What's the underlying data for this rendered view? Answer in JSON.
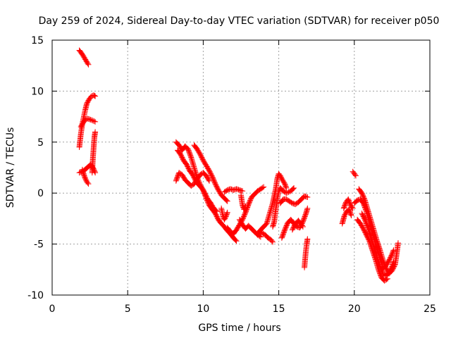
{
  "chart_data": {
    "type": "scatter",
    "title": "Day 259 of 2024, Sidereal Day-to-day VTEC variation (SDTVAR) for receiver p050",
    "xlabel": "GPS time / hours",
    "ylabel": "SDTVAR / TECUs",
    "xlim": [
      0,
      25
    ],
    "ylim": [
      -10,
      15
    ],
    "xticks": [
      0,
      5,
      10,
      15,
      20,
      25
    ],
    "yticks": [
      -10,
      -5,
      0,
      5,
      10,
      15
    ],
    "grid": true,
    "marker": "plus",
    "color": "#ff0000",
    "tracks": [
      [
        [
          1.8,
          14.0
        ],
        [
          2.0,
          13.6
        ],
        [
          2.2,
          13.1
        ],
        [
          2.4,
          12.6
        ]
      ],
      [
        [
          1.8,
          4.5
        ],
        [
          1.9,
          5.8
        ],
        [
          2.0,
          6.8
        ],
        [
          2.1,
          7.5
        ],
        [
          2.2,
          8.2
        ],
        [
          2.3,
          8.8
        ],
        [
          2.45,
          9.2
        ],
        [
          2.6,
          9.5
        ],
        [
          2.75,
          9.6
        ],
        [
          2.85,
          9.5
        ]
      ],
      [
        [
          1.9,
          6.5
        ],
        [
          2.05,
          6.9
        ],
        [
          2.2,
          7.2
        ],
        [
          2.35,
          7.3
        ],
        [
          2.55,
          7.2
        ],
        [
          2.7,
          7.1
        ],
        [
          2.85,
          7.0
        ]
      ],
      [
        [
          1.8,
          2.0
        ],
        [
          1.95,
          2.1
        ],
        [
          2.1,
          2.2
        ],
        [
          2.25,
          2.4
        ],
        [
          2.4,
          2.6
        ],
        [
          2.55,
          2.8
        ],
        [
          2.7,
          2.5
        ],
        [
          2.85,
          2.0
        ]
      ],
      [
        [
          2.0,
          2.3
        ],
        [
          2.1,
          1.8
        ],
        [
          2.2,
          1.4
        ],
        [
          2.3,
          1.1
        ],
        [
          2.4,
          0.9
        ]
      ],
      [
        [
          2.65,
          2.0
        ],
        [
          2.7,
          3.5
        ],
        [
          2.75,
          4.5
        ],
        [
          2.8,
          5.5
        ],
        [
          2.85,
          6.0
        ]
      ],
      [
        [
          8.2,
          5.0
        ],
        [
          8.4,
          4.7
        ],
        [
          8.6,
          4.2
        ],
        [
          8.8,
          4.6
        ],
        [
          9.0,
          4.3
        ],
        [
          9.2,
          3.5
        ],
        [
          9.4,
          2.5
        ],
        [
          9.6,
          1.5
        ],
        [
          9.8,
          0.8
        ],
        [
          10.0,
          0.3
        ],
        [
          10.2,
          -0.5
        ],
        [
          10.4,
          -1.2
        ],
        [
          10.6,
          -1.6
        ],
        [
          10.8,
          -2.0
        ],
        [
          11.0,
          -2.6
        ],
        [
          11.2,
          -3.0
        ],
        [
          11.4,
          -3.3
        ],
        [
          11.6,
          -3.7
        ],
        [
          11.8,
          -4.0
        ],
        [
          12.0,
          -4.4
        ],
        [
          12.2,
          -4.7
        ]
      ],
      [
        [
          8.3,
          4.2
        ],
        [
          8.5,
          3.8
        ],
        [
          8.7,
          3.2
        ],
        [
          8.9,
          2.8
        ],
        [
          9.1,
          2.2
        ],
        [
          9.3,
          1.8
        ],
        [
          9.5,
          1.2
        ],
        [
          9.7,
          0.8
        ],
        [
          9.9,
          0.5
        ],
        [
          10.1,
          0.0
        ],
        [
          10.3,
          -0.6
        ],
        [
          10.5,
          -1.0
        ],
        [
          10.7,
          -1.5
        ],
        [
          10.9,
          -1.8
        ]
      ],
      [
        [
          8.2,
          1.2
        ],
        [
          8.3,
          1.6
        ],
        [
          8.4,
          2.0
        ],
        [
          8.6,
          1.8
        ],
        [
          8.8,
          1.3
        ],
        [
          9.0,
          1.0
        ],
        [
          9.2,
          0.7
        ],
        [
          9.4,
          0.9
        ],
        [
          9.6,
          1.4
        ],
        [
          9.8,
          1.8
        ],
        [
          10.0,
          2.0
        ],
        [
          10.2,
          1.7
        ],
        [
          10.4,
          1.2
        ]
      ],
      [
        [
          9.4,
          4.7
        ],
        [
          9.6,
          4.3
        ],
        [
          9.8,
          3.8
        ],
        [
          10.0,
          3.2
        ],
        [
          10.2,
          2.7
        ],
        [
          10.4,
          2.2
        ],
        [
          10.6,
          1.6
        ],
        [
          10.8,
          0.9
        ],
        [
          11.0,
          0.3
        ],
        [
          11.2,
          -0.2
        ],
        [
          11.4,
          -0.5
        ],
        [
          11.6,
          -0.8
        ]
      ],
      [
        [
          11.2,
          -1.5
        ],
        [
          11.3,
          -2.2
        ],
        [
          11.4,
          -2.6
        ],
        [
          11.5,
          -2.3
        ],
        [
          11.6,
          -1.9
        ]
      ],
      [
        [
          11.4,
          0.1
        ],
        [
          11.6,
          0.3
        ],
        [
          11.8,
          0.4
        ],
        [
          12.0,
          0.3
        ],
        [
          12.2,
          0.4
        ],
        [
          12.4,
          0.3
        ],
        [
          12.6,
          0.2
        ]
      ],
      [
        [
          11.6,
          -3.4
        ],
        [
          11.8,
          -3.8
        ],
        [
          12.0,
          -4.0
        ],
        [
          12.2,
          -3.6
        ],
        [
          12.4,
          -3.1
        ],
        [
          12.6,
          -2.6
        ],
        [
          12.8,
          -1.9
        ],
        [
          13.0,
          -1.1
        ],
        [
          13.2,
          -0.4
        ],
        [
          13.4,
          -0.1
        ],
        [
          13.6,
          0.2
        ],
        [
          13.8,
          0.4
        ],
        [
          14.0,
          0.6
        ]
      ],
      [
        [
          12.4,
          -2.6
        ],
        [
          12.6,
          -3.1
        ],
        [
          12.8,
          -3.5
        ],
        [
          13.0,
          -3.2
        ],
        [
          13.2,
          -3.5
        ],
        [
          13.4,
          -3.8
        ],
        [
          13.6,
          -4.1
        ],
        [
          13.8,
          -4.3
        ]
      ],
      [
        [
          12.5,
          -0.2
        ],
        [
          12.6,
          -1.2
        ],
        [
          12.7,
          -1.6
        ],
        [
          12.8,
          -1.3
        ]
      ],
      [
        [
          13.6,
          -4.0
        ],
        [
          13.8,
          -3.6
        ],
        [
          14.0,
          -3.3
        ],
        [
          14.2,
          -3.0
        ],
        [
          14.4,
          -2.0
        ],
        [
          14.6,
          -1.0
        ],
        [
          14.8,
          0.4
        ],
        [
          14.9,
          1.4
        ],
        [
          15.0,
          1.9
        ],
        [
          15.1,
          1.7
        ],
        [
          15.2,
          1.4
        ],
        [
          15.4,
          0.9
        ],
        [
          15.5,
          0.5
        ]
      ],
      [
        [
          13.7,
          -3.8
        ],
        [
          13.9,
          -3.9
        ],
        [
          14.1,
          -4.1
        ],
        [
          14.3,
          -4.4
        ],
        [
          14.5,
          -4.6
        ],
        [
          14.6,
          -4.8
        ]
      ],
      [
        [
          14.6,
          -3.3
        ],
        [
          14.7,
          -2.8
        ],
        [
          14.8,
          -1.6
        ],
        [
          14.9,
          -0.6
        ],
        [
          15.0,
          0.2
        ],
        [
          15.1,
          0.5
        ],
        [
          15.3,
          0.2
        ],
        [
          15.5,
          0.0
        ],
        [
          15.8,
          0.2
        ],
        [
          16.0,
          0.5
        ]
      ],
      [
        [
          15.1,
          -1.0
        ],
        [
          15.3,
          -0.6
        ],
        [
          15.5,
          -0.6
        ],
        [
          15.7,
          -0.8
        ],
        [
          15.9,
          -1.0
        ],
        [
          16.1,
          -1.1
        ],
        [
          16.3,
          -0.9
        ],
        [
          16.5,
          -0.6
        ],
        [
          16.7,
          -0.3
        ],
        [
          16.9,
          -0.4
        ]
      ],
      [
        [
          15.2,
          -4.4
        ],
        [
          15.4,
          -3.6
        ],
        [
          15.6,
          -2.9
        ],
        [
          15.8,
          -2.6
        ],
        [
          16.0,
          -3.0
        ],
        [
          16.2,
          -3.3
        ],
        [
          16.4,
          -3.4
        ],
        [
          16.6,
          -2.8
        ],
        [
          16.8,
          -2.0
        ],
        [
          16.9,
          -1.5
        ]
      ],
      [
        [
          15.9,
          -3.6
        ],
        [
          16.1,
          -3.0
        ],
        [
          16.3,
          -2.7
        ],
        [
          16.5,
          -3.1
        ],
        [
          16.6,
          -3.3
        ]
      ],
      [
        [
          16.7,
          -7.3
        ],
        [
          16.75,
          -6.4
        ],
        [
          16.8,
          -5.6
        ],
        [
          16.85,
          -5.0
        ],
        [
          16.9,
          -4.5
        ]
      ],
      [
        [
          19.2,
          -3.0
        ],
        [
          19.35,
          -2.2
        ],
        [
          19.5,
          -1.8
        ],
        [
          19.65,
          -1.6
        ],
        [
          19.8,
          -2.2
        ]
      ],
      [
        [
          19.3,
          -1.5
        ],
        [
          19.45,
          -0.9
        ],
        [
          19.6,
          -0.6
        ],
        [
          19.75,
          -1.2
        ],
        [
          19.9,
          -1.5
        ]
      ],
      [
        [
          19.9,
          2.1
        ],
        [
          20.0,
          1.9
        ],
        [
          20.1,
          1.7
        ]
      ],
      [
        [
          20.0,
          -1.0
        ],
        [
          20.2,
          -0.7
        ],
        [
          20.4,
          -0.6
        ],
        [
          20.6,
          -1.0
        ],
        [
          20.8,
          -1.8
        ],
        [
          21.0,
          -2.8
        ],
        [
          21.2,
          -3.8
        ],
        [
          21.4,
          -4.9
        ],
        [
          21.6,
          -5.9
        ],
        [
          21.8,
          -6.8
        ],
        [
          21.9,
          -7.4
        ],
        [
          22.1,
          -7.1
        ],
        [
          22.3,
          -6.6
        ],
        [
          22.5,
          -6.0
        ],
        [
          22.6,
          -5.6
        ]
      ],
      [
        [
          20.3,
          0.4
        ],
        [
          20.5,
          0.0
        ],
        [
          20.7,
          -0.7
        ],
        [
          20.9,
          -1.7
        ],
        [
          21.1,
          -2.7
        ],
        [
          21.3,
          -3.7
        ],
        [
          21.5,
          -4.7
        ],
        [
          21.7,
          -5.6
        ],
        [
          21.9,
          -6.6
        ],
        [
          22.1,
          -7.4
        ],
        [
          22.3,
          -7.9
        ],
        [
          22.5,
          -7.6
        ],
        [
          22.7,
          -7.0
        ],
        [
          22.8,
          -6.0
        ],
        [
          22.9,
          -4.9
        ]
      ],
      [
        [
          20.2,
          -2.6
        ],
        [
          20.4,
          -3.0
        ],
        [
          20.6,
          -3.5
        ],
        [
          20.8,
          -4.1
        ],
        [
          21.0,
          -4.7
        ],
        [
          21.2,
          -5.6
        ],
        [
          21.4,
          -6.5
        ],
        [
          21.6,
          -7.5
        ],
        [
          21.8,
          -8.3
        ],
        [
          22.0,
          -8.6
        ],
        [
          22.2,
          -8.4
        ]
      ],
      [
        [
          20.5,
          -2.0
        ],
        [
          20.7,
          -2.6
        ],
        [
          20.9,
          -3.4
        ],
        [
          21.1,
          -4.4
        ],
        [
          21.3,
          -5.3
        ],
        [
          21.5,
          -6.3
        ],
        [
          21.7,
          -7.2
        ],
        [
          21.9,
          -7.9
        ],
        [
          22.1,
          -8.1
        ],
        [
          22.3,
          -7.8
        ],
        [
          22.5,
          -7.2
        ],
        [
          22.6,
          -6.7
        ]
      ]
    ]
  }
}
